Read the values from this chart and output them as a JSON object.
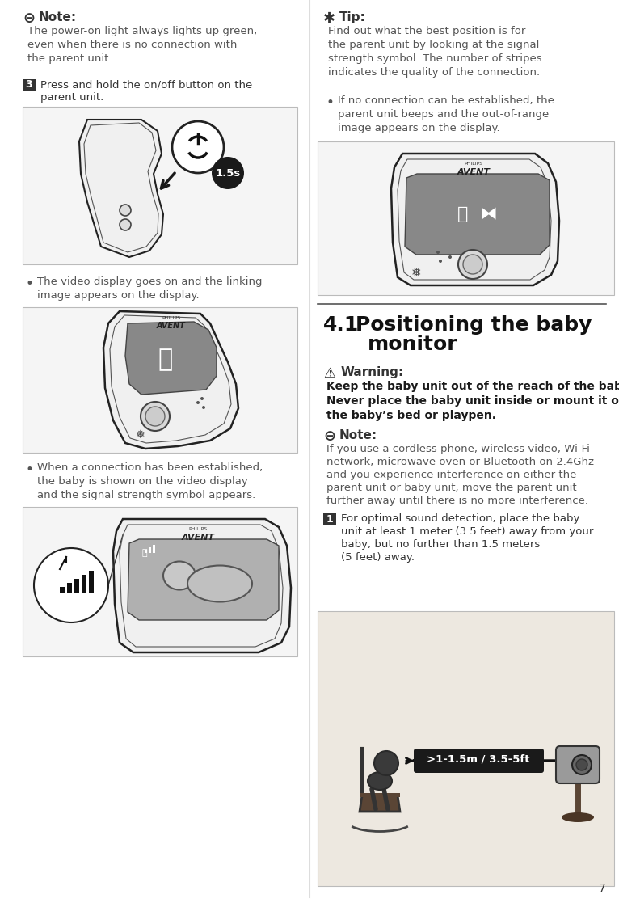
{
  "bg_color": "#ffffff",
  "left_col": {
    "note_icon": "⊖",
    "note_title": "Note:",
    "note_line1": "The power-on light always lights up green,",
    "note_line2": "even when there is no connection with",
    "note_line3": "the parent unit.",
    "step3_num": "3",
    "step3_line1": "Press and hold the on/off button on the",
    "step3_line2": "parent unit.",
    "time_label": "1.5s",
    "bullet1_line1": "The video display goes on and the linking",
    "bullet1_line2": "image appears on the display.",
    "bullet2_line1": "When a connection has been established,",
    "bullet2_line2": "the baby is shown on the video display",
    "bullet2_line3": "and the signal strength symbol appears."
  },
  "right_col": {
    "tip_icon": "✱",
    "tip_title": "Tip:",
    "tip_line1": "Find out what the best position is for",
    "tip_line2": "the parent unit by looking at the signal",
    "tip_line3": "strength symbol. The number of stripes",
    "tip_line4": "indicates the quality of the connection.",
    "bullet1_line1": "If no connection can be established, the",
    "bullet1_line2": "parent unit beeps and the out-of-range",
    "bullet1_line3": "image appears on the display.",
    "section_num": "4.1",
    "section_line1": "Positioning the baby",
    "section_line2": "monitor",
    "warn_icon": "⚠",
    "warn_title": "Warning:",
    "warn_line1": "Keep the baby unit out of the reach of the baby.",
    "warn_line2": "Never place the baby unit inside or mount it on",
    "warn_line3": "the baby’s bed or playpen.",
    "note2_icon": "⊖",
    "note2_title": "Note:",
    "note2_line1": "If you use a cordless phone, wireless video, Wi-Fi",
    "note2_line2": "network, microwave oven or Bluetooth on 2.4Ghz",
    "note2_line3": "and you experience interference on either the",
    "note2_line4": "parent unit or baby unit, move the parent unit",
    "note2_line5": "further away until there is no more interference.",
    "step1_num": "1",
    "step1_line1": "For optimal sound detection, place the baby",
    "step1_line2": "unit at least 1 meter (3.5 feet) away from your",
    "step1_line3": "baby, but no further than 1.5 meters",
    "step1_line4": "(5 feet) away.",
    "distance_label": ">1-1.5m / 3.5-5ft"
  },
  "footer_page": "7",
  "text_color": "#333333",
  "body_color": "#555555",
  "warn_color": "#1a1a1a",
  "img_edge": "#bbbbbb",
  "img_face": "#f5f5f5",
  "device_edge": "#222222",
  "device_face": "#f0f0f0",
  "screen_face": "#888888",
  "badge_face": "#1a1a1a",
  "dist_bg": "#ede8e0"
}
